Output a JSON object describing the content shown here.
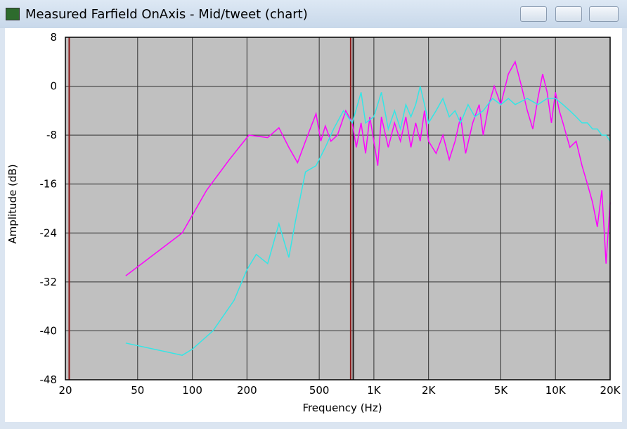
{
  "window_title": "Measured Farfield OnAxis - Mid/tweet (chart)",
  "chart_data": {
    "type": "line",
    "xlabel": "Frequency (Hz)",
    "ylabel": "Amplitude (dB)",
    "xscale": "log",
    "grid": true,
    "background": "#c0c0c0",
    "xlim": [
      20,
      20000
    ],
    "ylim": [
      -48,
      8
    ],
    "xticks": [
      20,
      50,
      100,
      200,
      500,
      {
        "value": 1000,
        "label": "1K"
      },
      {
        "value": 2000,
        "label": "2K"
      },
      {
        "value": 5000,
        "label": "5K"
      },
      {
        "value": 10000,
        "label": "10K"
      },
      {
        "value": 20000,
        "label": "20K"
      }
    ],
    "yticks": [
      -48,
      -40,
      -32,
      -24,
      -16,
      -8,
      0,
      8
    ],
    "cursors": [
      {
        "x": 21,
        "color": "#8b1a1a"
      },
      {
        "x": 745,
        "color": "#8b1a1a"
      },
      {
        "x": 770,
        "color": "#222222"
      }
    ],
    "series": [
      {
        "color": "#ff00ff",
        "x": [
          43,
          88,
          120,
          160,
          205,
          230,
          260,
          300,
          340,
          380,
          420,
          480,
          510,
          540,
          580,
          630,
          700,
          760,
          800,
          850,
          900,
          950,
          1000,
          1050,
          1100,
          1200,
          1300,
          1400,
          1500,
          1600,
          1700,
          1800,
          1900,
          2000,
          2200,
          2400,
          2600,
          2800,
          3000,
          3200,
          3500,
          3800,
          4000,
          4300,
          4600,
          5000,
          5500,
          6000,
          6500,
          7000,
          7500,
          8000,
          8500,
          9000,
          9500,
          10000,
          10500,
          11000,
          12000,
          13000,
          14000,
          15000,
          16000,
          17000,
          18000,
          19000,
          20000
        ],
        "values": [
          -31,
          -24,
          -17,
          -12,
          -8,
          -8.2,
          -8.4,
          -6.8,
          -10,
          -12.5,
          -9,
          -4.5,
          -9,
          -6.5,
          -9,
          -8,
          -4,
          -6,
          -10,
          -6,
          -11,
          -5,
          -9,
          -13,
          -5,
          -10,
          -6,
          -9,
          -5,
          -10,
          -6,
          -9,
          -4,
          -9,
          -11,
          -8,
          -12,
          -9,
          -5,
          -11,
          -6,
          -3,
          -8,
          -3,
          0,
          -3,
          2,
          4,
          0,
          -4,
          -7,
          -2,
          2,
          -1,
          -6,
          -1,
          -4,
          -6,
          -10,
          -9,
          -13,
          -16,
          -19,
          -23,
          -17,
          -29,
          -19
        ]
      },
      {
        "color": "#33e6e6",
        "x": [
          43,
          88,
          100,
          130,
          170,
          200,
          225,
          260,
          300,
          340,
          370,
          420,
          480,
          540,
          600,
          680,
          760,
          850,
          900,
          1000,
          1100,
          1200,
          1300,
          1400,
          1500,
          1600,
          1700,
          1800,
          1900,
          2000,
          2200,
          2400,
          2600,
          2800,
          3000,
          3300,
          3600,
          4000,
          4500,
          5000,
          5500,
          6000,
          7000,
          8000,
          9000,
          10000,
          11000,
          12000,
          13000,
          14000,
          15000,
          16000,
          17000,
          18000,
          19000,
          20000
        ],
        "values": [
          -42,
          -44,
          -43,
          -40,
          -35,
          -30,
          -27.5,
          -29,
          -22.5,
          -28,
          -22,
          -14,
          -13,
          -10,
          -7,
          -4,
          -6,
          -1,
          -6,
          -5,
          -1,
          -7,
          -4,
          -7,
          -3,
          -5,
          -3,
          0,
          -3,
          -6,
          -4,
          -2,
          -5,
          -4,
          -6,
          -3,
          -5,
          -4,
          -2,
          -3,
          -2,
          -3,
          -2,
          -3,
          -2,
          -2,
          -3,
          -4,
          -5,
          -6,
          -6,
          -7,
          -7,
          -8,
          -8,
          -9
        ]
      }
    ]
  }
}
